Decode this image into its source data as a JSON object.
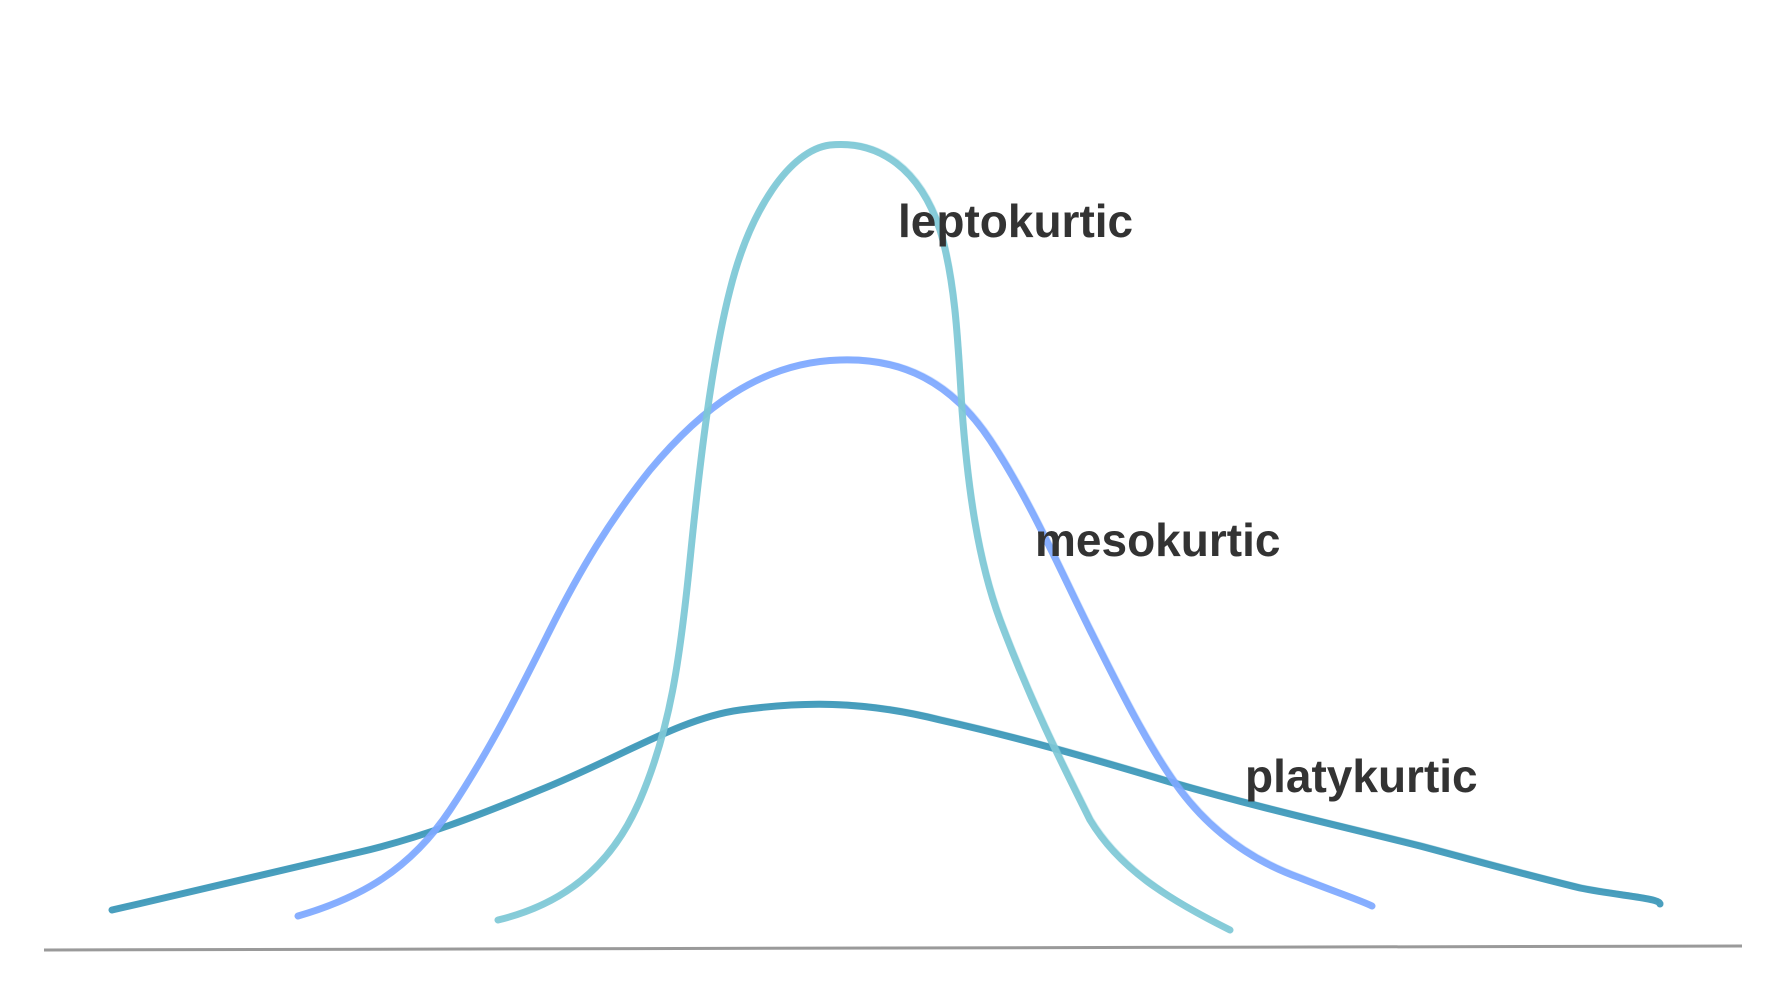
{
  "diagram": {
    "curves": [
      {
        "id": "platykurtic",
        "label": "platykurtic",
        "color": "#3b97b8"
      },
      {
        "id": "mesokurtic",
        "label": "mesokurtic",
        "color": "#7ea8ff"
      },
      {
        "id": "leptokurtic",
        "label": "leptokurtic",
        "color": "#7ec8d6"
      }
    ],
    "baseline_color": "#9a9a9a",
    "label_color": "#333333"
  }
}
